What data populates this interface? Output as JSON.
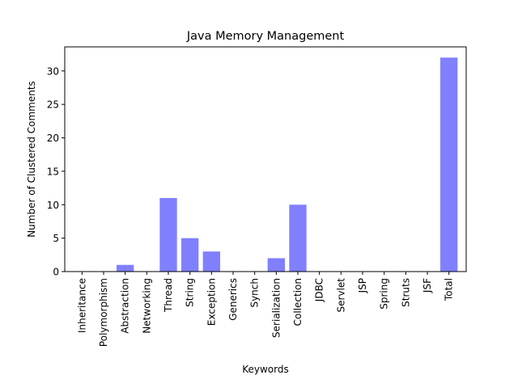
{
  "chart_data": {
    "type": "bar",
    "title": "Java Memory Management",
    "xlabel": "Keywords",
    "ylabel": "Number of Clustered Comments",
    "categories": [
      "Inheritance",
      "Polymorphism",
      "Abstraction",
      "Networking",
      "Thread",
      "String",
      "Exception",
      "Generics",
      "Synch",
      "Serialization",
      "Collection",
      "JDBC",
      "Servlet",
      "JSP",
      "Spring",
      "Struts",
      "JSF",
      "Total"
    ],
    "values": [
      0,
      0,
      1,
      0,
      11,
      5,
      3,
      0,
      0,
      2,
      10,
      0,
      0,
      0,
      0,
      0,
      0,
      32
    ],
    "ylim": [
      0,
      33.6
    ],
    "yticks": [
      0,
      5,
      10,
      15,
      20,
      25,
      30
    ],
    "bar_color": "#8080ff",
    "grid": false,
    "legend": "none"
  }
}
